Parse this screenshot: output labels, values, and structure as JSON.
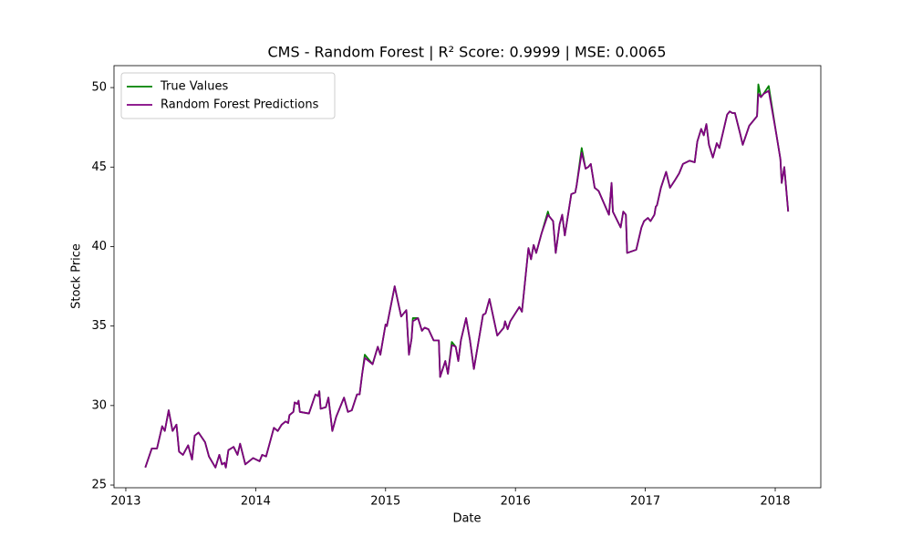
{
  "chart_data": {
    "type": "line",
    "title": "CMS - Random Forest | R² Score: 0.9999 | MSE: 0.0065",
    "x_label": "Date",
    "y_label": "Stock Price",
    "x": [
      2013.15,
      2013.2,
      2013.24,
      2013.28,
      2013.3,
      2013.33,
      2013.36,
      2013.39,
      2013.41,
      2013.44,
      2013.48,
      2013.51,
      2013.53,
      2013.56,
      2013.61,
      2013.64,
      2013.69,
      2013.72,
      2013.74,
      2013.76,
      2013.77,
      2013.79,
      2013.83,
      2013.86,
      2013.88,
      2013.92,
      2013.98,
      2014.03,
      2014.05,
      2014.08,
      2014.11,
      2014.14,
      2014.17,
      2014.2,
      2014.23,
      2014.25,
      2014.26,
      2014.29,
      2014.3,
      2014.32,
      2014.33,
      2014.34,
      2014.41,
      2014.46,
      2014.48,
      2014.49,
      2014.5,
      2014.54,
      2014.56,
      2014.59,
      2014.62,
      2014.68,
      2014.71,
      2014.74,
      2014.78,
      2014.8,
      2014.82,
      2014.84,
      2014.9,
      2014.94,
      2014.96,
      2015.0,
      2015.01,
      2015.07,
      2015.12,
      2015.16,
      2015.18,
      2015.2,
      2015.21,
      2015.25,
      2015.28,
      2015.3,
      2015.33,
      2015.37,
      2015.41,
      2015.42,
      2015.46,
      2015.48,
      2015.51,
      2015.54,
      2015.56,
      2015.58,
      2015.62,
      2015.65,
      2015.68,
      2015.75,
      2015.77,
      2015.8,
      2015.86,
      2015.91,
      2015.92,
      2015.94,
      2015.96,
      2016.03,
      2016.05,
      2016.1,
      2016.12,
      2016.14,
      2016.16,
      2016.2,
      2016.25,
      2016.26,
      2016.29,
      2016.31,
      2016.34,
      2016.36,
      2016.38,
      2016.43,
      2016.46,
      2016.47,
      2016.51,
      2016.54,
      2016.56,
      2016.58,
      2016.61,
      2016.64,
      2016.72,
      2016.74,
      2016.75,
      2016.81,
      2016.83,
      2016.85,
      2016.86,
      2016.93,
      2016.97,
      2016.99,
      2017.02,
      2017.04,
      2017.07,
      2017.08,
      2017.09,
      2017.12,
      2017.16,
      2017.19,
      2017.23,
      2017.26,
      2017.29,
      2017.34,
      2017.38,
      2017.4,
      2017.43,
      2017.45,
      2017.47,
      2017.49,
      2017.52,
      2017.55,
      2017.57,
      2017.63,
      2017.65,
      2017.67,
      2017.69,
      2017.73,
      2017.75,
      2017.8,
      2017.83,
      2017.86,
      2017.87,
      2017.89,
      2017.91,
      2017.95,
      2018.01,
      2018.04,
      2018.05,
      2018.07,
      2018.1
    ],
    "series": [
      {
        "name": "True Values",
        "color": "#008000",
        "values": [
          26.1,
          27.3,
          27.3,
          28.7,
          28.4,
          29.7,
          28.4,
          28.8,
          27.1,
          26.9,
          27.5,
          26.6,
          28.1,
          28.3,
          27.7,
          26.8,
          26.1,
          26.9,
          26.3,
          26.4,
          26.1,
          27.2,
          27.4,
          26.9,
          27.6,
          26.3,
          26.7,
          26.5,
          26.9,
          26.8,
          27.7,
          28.6,
          28.4,
          28.8,
          29.0,
          28.9,
          29.4,
          29.6,
          30.2,
          30.1,
          30.3,
          29.6,
          29.5,
          30.7,
          30.6,
          30.9,
          29.8,
          29.9,
          30.5,
          28.4,
          29.3,
          30.5,
          29.6,
          29.7,
          30.7,
          30.7,
          32.0,
          33.2,
          32.6,
          33.7,
          33.2,
          35.1,
          35.0,
          37.5,
          35.6,
          36.0,
          33.2,
          34.2,
          35.5,
          35.5,
          34.7,
          34.9,
          34.8,
          34.1,
          34.1,
          31.8,
          32.8,
          32.0,
          34.0,
          33.7,
          32.8,
          34.1,
          35.5,
          34.1,
          32.3,
          35.7,
          35.8,
          36.7,
          34.4,
          34.9,
          35.3,
          34.8,
          35.3,
          36.2,
          35.9,
          39.9,
          39.2,
          40.1,
          39.6,
          40.8,
          42.2,
          41.9,
          41.6,
          39.6,
          41.4,
          42.0,
          40.7,
          43.3,
          43.4,
          43.8,
          46.2,
          44.9,
          45.0,
          45.2,
          43.7,
          43.5,
          42.0,
          44.0,
          42.2,
          41.2,
          42.2,
          42.0,
          39.6,
          39.8,
          41.2,
          41.6,
          41.8,
          41.6,
          42.0,
          42.5,
          42.6,
          43.7,
          44.7,
          43.7,
          44.2,
          44.6,
          45.2,
          45.4,
          45.3,
          46.6,
          47.4,
          47.0,
          47.7,
          46.4,
          45.6,
          46.5,
          46.2,
          48.3,
          48.5,
          48.4,
          48.4,
          47.1,
          46.4,
          47.6,
          47.9,
          48.2,
          50.2,
          49.4,
          49.6,
          50.1,
          47.0,
          45.5,
          44.0,
          45.0,
          42.2
        ]
      },
      {
        "name": "Random Forest Predictions",
        "color": "#800080",
        "values": [
          26.1,
          27.3,
          27.3,
          28.7,
          28.4,
          29.7,
          28.4,
          28.8,
          27.1,
          26.9,
          27.5,
          26.6,
          28.1,
          28.3,
          27.7,
          26.8,
          26.1,
          26.9,
          26.3,
          26.4,
          26.1,
          27.2,
          27.4,
          26.9,
          27.6,
          26.3,
          26.7,
          26.5,
          26.9,
          26.8,
          27.7,
          28.6,
          28.4,
          28.8,
          29.0,
          28.9,
          29.4,
          29.6,
          30.2,
          30.1,
          30.3,
          29.6,
          29.5,
          30.7,
          30.6,
          30.9,
          29.8,
          29.9,
          30.5,
          28.4,
          29.3,
          30.5,
          29.6,
          29.7,
          30.7,
          30.7,
          32.0,
          33.0,
          32.6,
          33.7,
          33.2,
          35.1,
          35.0,
          37.5,
          35.6,
          36.0,
          33.2,
          34.2,
          35.3,
          35.5,
          34.7,
          34.9,
          34.8,
          34.1,
          34.1,
          31.8,
          32.8,
          32.0,
          33.8,
          33.7,
          32.8,
          34.1,
          35.5,
          34.1,
          32.3,
          35.7,
          35.8,
          36.7,
          34.4,
          34.9,
          35.3,
          34.8,
          35.3,
          36.2,
          35.9,
          39.9,
          39.2,
          40.1,
          39.6,
          40.8,
          42.0,
          41.9,
          41.6,
          39.6,
          41.4,
          42.0,
          40.7,
          43.3,
          43.4,
          43.8,
          45.9,
          44.9,
          45.0,
          45.2,
          43.7,
          43.5,
          42.0,
          44.0,
          42.2,
          41.2,
          42.2,
          42.0,
          39.6,
          39.8,
          41.2,
          41.6,
          41.8,
          41.6,
          42.0,
          42.5,
          42.6,
          43.7,
          44.7,
          43.7,
          44.2,
          44.6,
          45.2,
          45.4,
          45.3,
          46.6,
          47.4,
          47.0,
          47.7,
          46.4,
          45.6,
          46.5,
          46.2,
          48.3,
          48.5,
          48.4,
          48.4,
          47.1,
          46.4,
          47.6,
          47.9,
          48.2,
          49.6,
          49.4,
          49.6,
          49.8,
          47.0,
          45.5,
          44.0,
          45.0,
          42.2
        ]
      }
    ],
    "xlim": [
      2012.909,
      2018.351
    ],
    "xticks": [
      2013,
      2014,
      2015,
      2016,
      2017,
      2018
    ],
    "ylim": [
      24.83,
      51.38
    ],
    "yticks": [
      25,
      30,
      35,
      40,
      45,
      50
    ],
    "grid": false,
    "legend": "upper left"
  }
}
